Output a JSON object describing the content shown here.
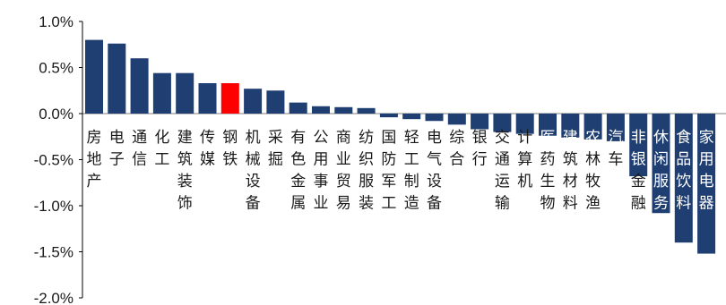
{
  "chart_data": {
    "type": "bar",
    "title": "",
    "xlabel": "",
    "ylabel": "",
    "ylim": [
      -2.0,
      1.0
    ],
    "yticks": [
      1.0,
      0.5,
      0.0,
      -0.5,
      -1.0,
      -1.5,
      -2.0
    ],
    "ytick_labels": [
      "1.0%",
      "0.5%",
      "0.0%",
      "-0.5%",
      "-1.0%",
      "-1.5%",
      "-2.0%"
    ],
    "grid": false,
    "legend": "none",
    "categories": [
      "房地产",
      "电子",
      "通信",
      "化工",
      "建筑装饰",
      "传媒",
      "钢铁",
      "机械设备",
      "采掘",
      "有色金属",
      "公用事业",
      "商业贸易",
      "纺织服装",
      "国防军工",
      "轻工制造",
      "电气设备",
      "综合",
      "银行",
      "交通运输",
      "计算机",
      "医药生物",
      "建筑材料",
      "农林牧渔",
      "汽车",
      "非银金融",
      "休闲服务",
      "食品饮料",
      "家用电器"
    ],
    "values": [
      0.8,
      0.76,
      0.6,
      0.44,
      0.44,
      0.33,
      0.33,
      0.27,
      0.25,
      0.12,
      0.08,
      0.07,
      0.06,
      -0.04,
      -0.06,
      -0.08,
      -0.12,
      -0.17,
      -0.2,
      -0.22,
      -0.24,
      -0.26,
      -0.28,
      -0.3,
      -0.68,
      -1.08,
      -1.4,
      -1.52
    ],
    "highlight_category": "钢铁",
    "colors": {
      "bar": "#1f3e72",
      "highlight": "#ff0000",
      "axis": "#000000",
      "label_on_bar": "#ffffff",
      "label_default": "#1a1a1a"
    }
  }
}
